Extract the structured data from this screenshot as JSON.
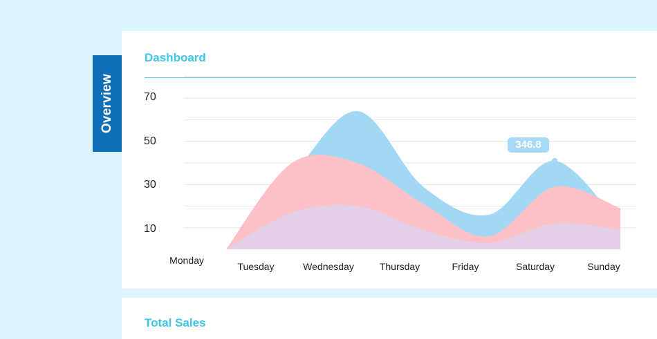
{
  "sidebar": {
    "tab_label": "Overview"
  },
  "card": {
    "title": "Dashboard"
  },
  "card2": {
    "title": "Total Sales"
  },
  "chart_data": {
    "type": "area",
    "categories": [
      "Monday",
      "Tuesday",
      "Wednesday",
      "Thursday",
      "Friday",
      "Saturday",
      "Sunday"
    ],
    "yticks": [
      "70",
      "50",
      "30",
      "10"
    ],
    "ylim": [
      0,
      80
    ],
    "grid": true,
    "series": [
      {
        "color": "#a3d8f4",
        "values": [
          0,
          34,
          64,
          29,
          16,
          41,
          11
        ]
      },
      {
        "color": "#fdc0c6",
        "values": [
          0,
          40,
          40,
          21,
          6,
          29,
          19
        ]
      },
      {
        "color": "#e3d0e6",
        "values": [
          0,
          17,
          20,
          9,
          3,
          12,
          9
        ]
      }
    ],
    "annotation": {
      "label": "346.8",
      "category": "Saturday"
    }
  }
}
